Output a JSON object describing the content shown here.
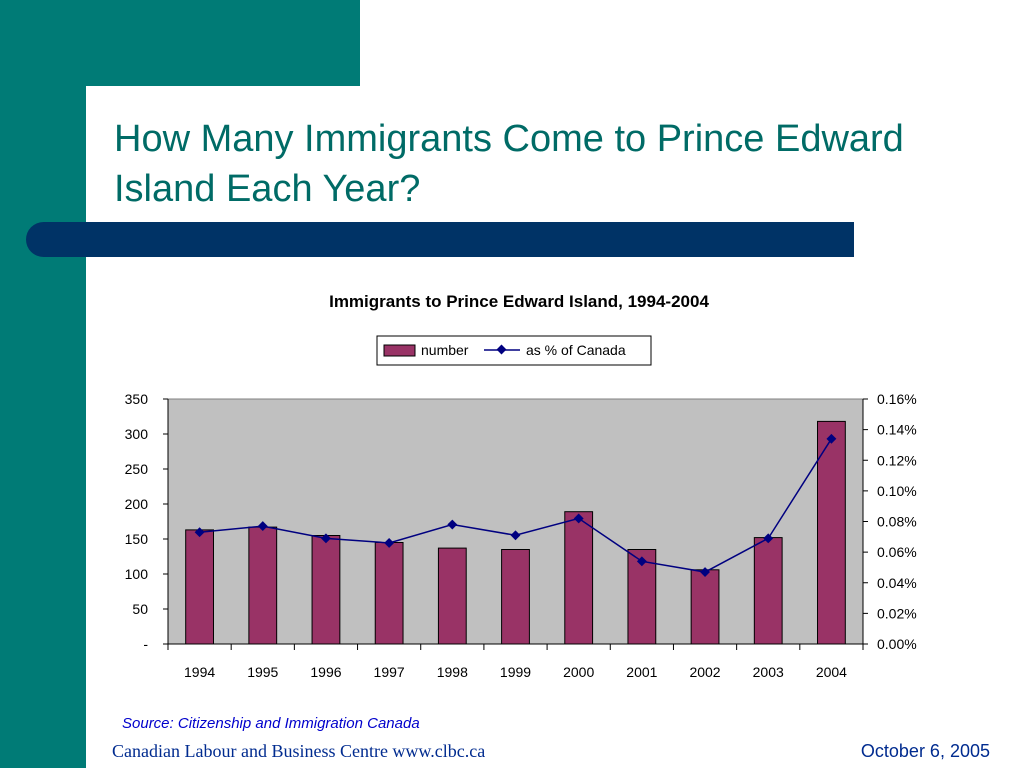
{
  "slide": {
    "title": "How Many Immigrants Come to Prince Edward Island Each Year?",
    "source": "Source: Citizenship and Immigration Canada",
    "footer_left": "Canadian Labour and Business Centre www.clbc.ca",
    "footer_right": "October 6, 2005"
  },
  "colors": {
    "teal": "#007b76",
    "navy_bar": "#003366",
    "bar_fill": "#993366",
    "line": "#000080",
    "plot_bg": "#c0c0c0"
  },
  "chart_data": {
    "type": "bar",
    "title": "Immigrants to Prince Edward Island, 1994-2004",
    "categories": [
      "1994",
      "1995",
      "1996",
      "1997",
      "1998",
      "1999",
      "2000",
      "2001",
      "2002",
      "2003",
      "2004"
    ],
    "series": [
      {
        "name": "number",
        "type": "bar",
        "axis": "left",
        "values": [
          163,
          167,
          155,
          145,
          137,
          135,
          189,
          135,
          106,
          152,
          318
        ]
      },
      {
        "name": "as % of Canada",
        "type": "line",
        "axis": "right",
        "values": [
          0.073,
          0.077,
          0.069,
          0.066,
          0.078,
          0.071,
          0.082,
          0.054,
          0.047,
          0.069,
          0.134
        ]
      }
    ],
    "y_left": {
      "ylim": [
        0,
        350
      ],
      "ticks": [
        0,
        50,
        100,
        150,
        200,
        250,
        300,
        350
      ],
      "tick_labels": [
        "-",
        "50",
        "100",
        "150",
        "200",
        "250",
        "300",
        "350"
      ]
    },
    "y_right": {
      "ylim": [
        0,
        0.16
      ],
      "ticks": [
        0,
        0.02,
        0.04,
        0.06,
        0.08,
        0.1,
        0.12,
        0.14,
        0.16
      ],
      "tick_labels": [
        "0.00%",
        "0.02%",
        "0.04%",
        "0.06%",
        "0.08%",
        "0.10%",
        "0.12%",
        "0.14%",
        "0.16%"
      ]
    },
    "legend": {
      "placement": "top-center",
      "entries": [
        "number",
        "as % of Canada"
      ]
    },
    "grid": false
  }
}
